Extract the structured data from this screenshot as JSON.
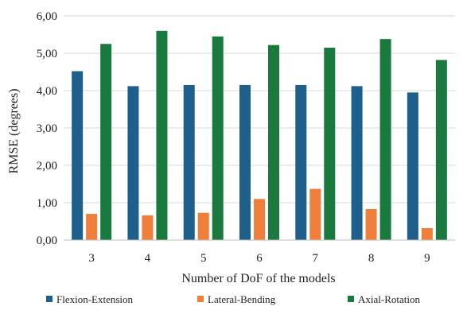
{
  "chart_data": {
    "type": "bar",
    "xlabel": "Number of DoF of the models",
    "ylabel": "RMSE (degrees)",
    "ylim": [
      0,
      6
    ],
    "yticks": [
      "0,00",
      "1,00",
      "2,00",
      "3,00",
      "4,00",
      "5,00",
      "6,00"
    ],
    "categories": [
      "3",
      "4",
      "5",
      "6",
      "7",
      "8",
      "9"
    ],
    "grid": "horizontal",
    "legend_position": "bottom",
    "series": [
      {
        "name": "Flexion-Extension",
        "color": "#1f5f8b",
        "values": [
          4.52,
          4.12,
          4.15,
          4.15,
          4.15,
          4.12,
          3.95
        ]
      },
      {
        "name": "Lateral-Bending",
        "color": "#f07f3c",
        "values": [
          0.7,
          0.66,
          0.73,
          1.1,
          1.37,
          0.83,
          0.32
        ]
      },
      {
        "name": "Axial-Rotation",
        "color": "#1a7a3e",
        "values": [
          5.25,
          5.6,
          5.45,
          5.22,
          5.15,
          5.38,
          4.82
        ]
      }
    ]
  }
}
